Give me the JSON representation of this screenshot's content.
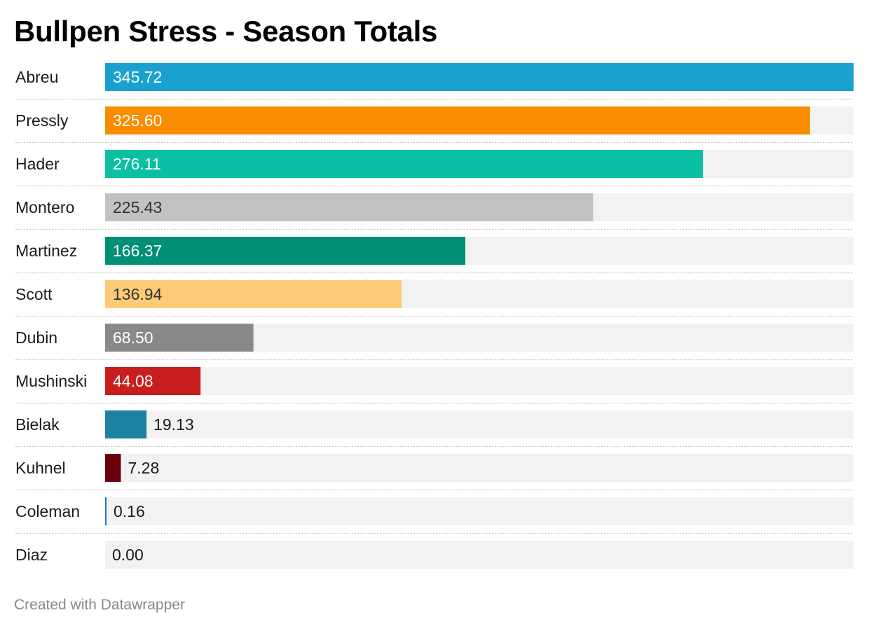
{
  "chart_data": {
    "type": "bar",
    "orientation": "horizontal",
    "title": "Bullpen Stress - Season Totals",
    "categories": [
      "Abreu",
      "Pressly",
      "Hader",
      "Montero",
      "Martinez",
      "Scott",
      "Dubin",
      "Mushinski",
      "Bielak",
      "Kuhnel",
      "Coleman",
      "Diaz"
    ],
    "values": [
      345.72,
      325.6,
      276.11,
      225.43,
      166.37,
      136.94,
      68.5,
      44.08,
      19.13,
      7.28,
      0.16,
      0.0
    ],
    "value_labels": [
      "345.72",
      "325.60",
      "276.11",
      "225.43",
      "166.37",
      "136.94",
      "68.50",
      "44.08",
      "19.13",
      "7.28",
      "0.16",
      "0.00"
    ],
    "colors": [
      "#1aa1ce",
      "#fa8c00",
      "#0abfa3",
      "#c2c2c2",
      "#008f77",
      "#fdcb78",
      "#898989",
      "#c81f1e",
      "#1d81a2",
      "#6b000b",
      "#1a76d2",
      "#cccccc"
    ],
    "label_colors": [
      "#ffffff",
      "#ffffff",
      "#ffffff",
      "#333333",
      "#ffffff",
      "#333333",
      "#ffffff",
      "#ffffff",
      "#1a1a1a",
      "#1a1a1a",
      "#1a1a1a",
      "#1a1a1a"
    ],
    "background_bar_color": "#f2f2f2",
    "xlim": [
      0,
      345.72
    ],
    "grid": false,
    "legend": "none"
  },
  "footer": {
    "credit": "Created with Datawrapper"
  }
}
